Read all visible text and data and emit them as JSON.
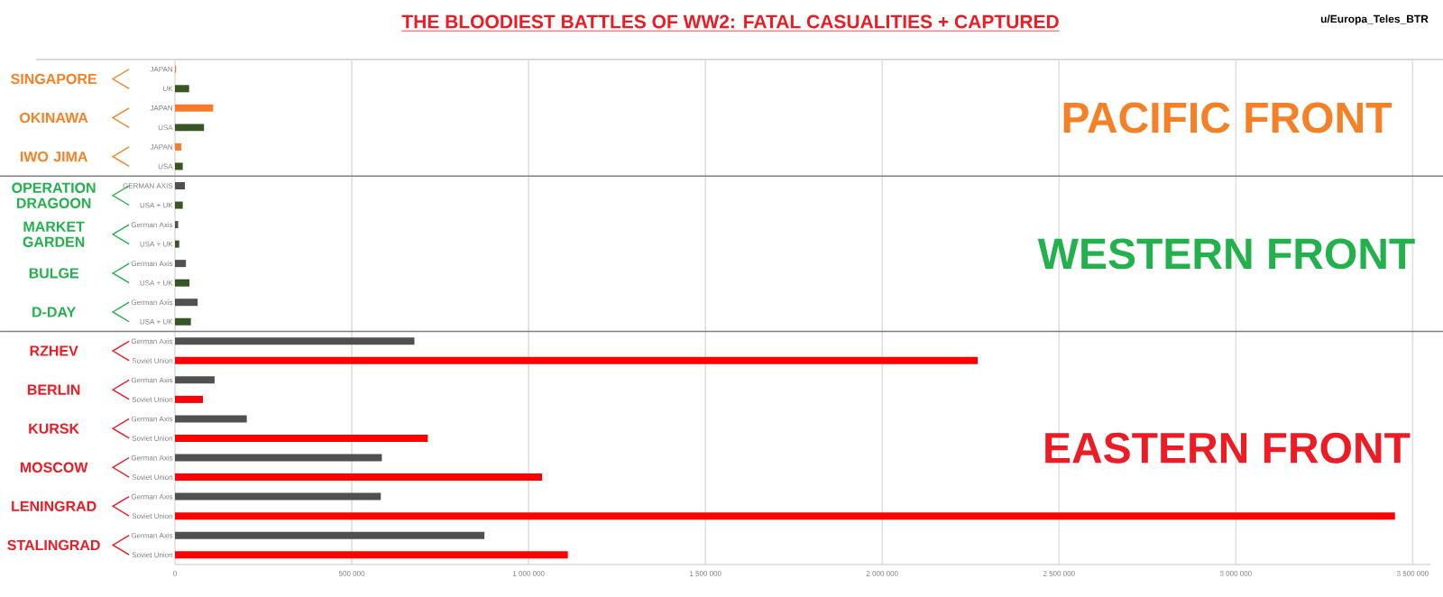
{
  "chart_data": {
    "type": "bar",
    "orientation": "horizontal",
    "title": "THE BLOODIEST BATTLES OF WW2:  FATAL CASUALITIES + CAPTURED",
    "annotations": [
      "u/Europa_Teles_BTR",
      "PACIFIC FRONT",
      "WESTERN FRONT",
      "EASTERN FRONT",
      "SINGAPORE",
      "OKINAWA",
      "IWO JIMA",
      "OPERATION DRAGOON",
      "MARKET GARDEN",
      "BULGE",
      "D-DAY",
      "RZHEV",
      "BERLIN",
      "KURSK",
      "MOSCOW",
      "LENINGRAD",
      "STALINGRAD"
    ],
    "categories": [
      "JAPAN",
      "UK",
      "JAPAN",
      "USA",
      "JAPAN",
      "USA",
      "GERMAN AXIS",
      "USA + UK",
      "German Axis",
      "USA + UK",
      "German Axis",
      "USA + UK",
      "German Axis",
      "USA + UK",
      "German Axis",
      "Soviet Union",
      "German Axis",
      "Soviet Union",
      "German Axis",
      "Soviet Union",
      "German Axis",
      "Soviet Union",
      "German Axis",
      "Soviet Union",
      "German Axis",
      "Soviet Union"
    ],
    "values": [
      3000,
      40000,
      108000,
      82000,
      18000,
      22000,
      28000,
      22000,
      9000,
      12000,
      31000,
      41000,
      64000,
      45000,
      677000,
      2270000,
      112000,
      79000,
      203000,
      715000,
      585000,
      1038000,
      582000,
      3450000,
      875000,
      1111000
    ],
    "colors": [
      "#f47c2c",
      "#375623",
      "#f47c2c",
      "#375623",
      "#f47c2c",
      "#375623",
      "#505050",
      "#375623",
      "#505050",
      "#375623",
      "#505050",
      "#375623",
      "#505050",
      "#375623",
      "#505050",
      "#ff0000",
      "#505050",
      "#ff0000",
      "#505050",
      "#ff0000",
      "#505050",
      "#ff0000",
      "#505050",
      "#ff0000",
      "#505050",
      "#ff0000"
    ],
    "xlim": [
      0,
      3550000
    ],
    "xticks": [
      0,
      {
        "value": 500000,
        "label": "500 000"
      },
      {
        "value": 1000000,
        "label": "1 000 000"
      },
      {
        "value": 1500000,
        "label": "1 500 000"
      },
      {
        "value": 2000000,
        "label": "2 000 000"
      },
      {
        "value": 2500000,
        "label": "2 500 000"
      },
      {
        "value": 3000000,
        "label": "3 000 000"
      },
      {
        "value": 3500000,
        "label": "3 500 000"
      }
    ],
    "grid": "x"
  }
}
